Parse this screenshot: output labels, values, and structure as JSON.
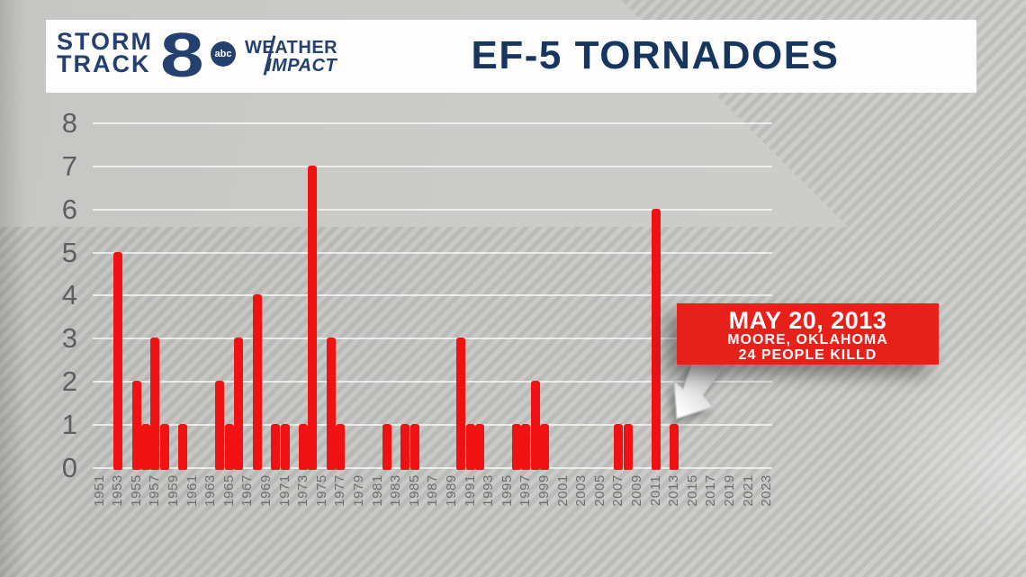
{
  "header": {
    "logo": {
      "line1": "STORM",
      "line2": "TRACK",
      "channel": "8",
      "network": "abc",
      "brand_line1": "WEATHER",
      "brand_line2": "IMPACT"
    },
    "title": "EF-5 TORNADOES"
  },
  "callout": {
    "lines": [
      "MAY 20, 2013",
      "MOORE, OKLAHOMA",
      "24 PEOPLE KILLD"
    ],
    "target_year": 2013
  },
  "colors": {
    "bar_red": "#f01212",
    "callout_red": "#e8201a",
    "logo_navy": "#24406e",
    "title_navy": "#16365f",
    "y_axis_gray": "#5e5e5e",
    "x_axis_gray": "#6e6e6e",
    "header_bg": "#fdfdfd"
  },
  "chart_data": {
    "type": "bar",
    "title": "EF-5 TORNADOES",
    "xlabel": "",
    "ylabel": "",
    "ylim": [
      0,
      8
    ],
    "y_ticks": [
      0,
      1,
      2,
      3,
      4,
      5,
      6,
      7,
      8
    ],
    "x_tick_labels": [
      "1951",
      "1953",
      "1955",
      "1957",
      "1959",
      "1961",
      "1963",
      "1965",
      "1967",
      "1969",
      "1971",
      "1973",
      "1975",
      "1977",
      "1979",
      "1981",
      "1983",
      "1985",
      "1987",
      "1989",
      "1991",
      "1993",
      "1995",
      "1997",
      "1999",
      "2001",
      "2003",
      "2005",
      "2007",
      "2011",
      "2009",
      "2013",
      "2015",
      "2017",
      "2019",
      "2021",
      "2023"
    ],
    "x_tick_order_note": "odd years 1951-2023",
    "grid": true,
    "legend": false,
    "points": [
      {
        "year": 1953,
        "count": 5
      },
      {
        "year": 1955,
        "count": 2
      },
      {
        "year": 1956,
        "count": 1
      },
      {
        "year": 1957,
        "count": 3
      },
      {
        "year": 1958,
        "count": 1
      },
      {
        "year": 1960,
        "count": 1
      },
      {
        "year": 1964,
        "count": 2
      },
      {
        "year": 1965,
        "count": 1
      },
      {
        "year": 1966,
        "count": 3
      },
      {
        "year": 1968,
        "count": 4
      },
      {
        "year": 1970,
        "count": 1
      },
      {
        "year": 1971,
        "count": 1
      },
      {
        "year": 1973,
        "count": 1
      },
      {
        "year": 1974,
        "count": 7
      },
      {
        "year": 1976,
        "count": 3
      },
      {
        "year": 1977,
        "count": 1
      },
      {
        "year": 1982,
        "count": 1
      },
      {
        "year": 1984,
        "count": 1
      },
      {
        "year": 1985,
        "count": 1
      },
      {
        "year": 1990,
        "count": 3
      },
      {
        "year": 1991,
        "count": 1
      },
      {
        "year": 1992,
        "count": 1
      },
      {
        "year": 1996,
        "count": 1
      },
      {
        "year": 1997,
        "count": 1
      },
      {
        "year": 1998,
        "count": 2
      },
      {
        "year": 1999,
        "count": 1
      },
      {
        "year": 2007,
        "count": 1
      },
      {
        "year": 2008,
        "count": 1
      },
      {
        "year": 2011,
        "count": 6
      },
      {
        "year": 2013,
        "count": 1
      }
    ],
    "annotation": {
      "lines": [
        "MAY 20, 2013",
        "MOORE, OKLAHOMA",
        "24 PEOPLE KILLD"
      ],
      "target_year": 2013
    }
  }
}
